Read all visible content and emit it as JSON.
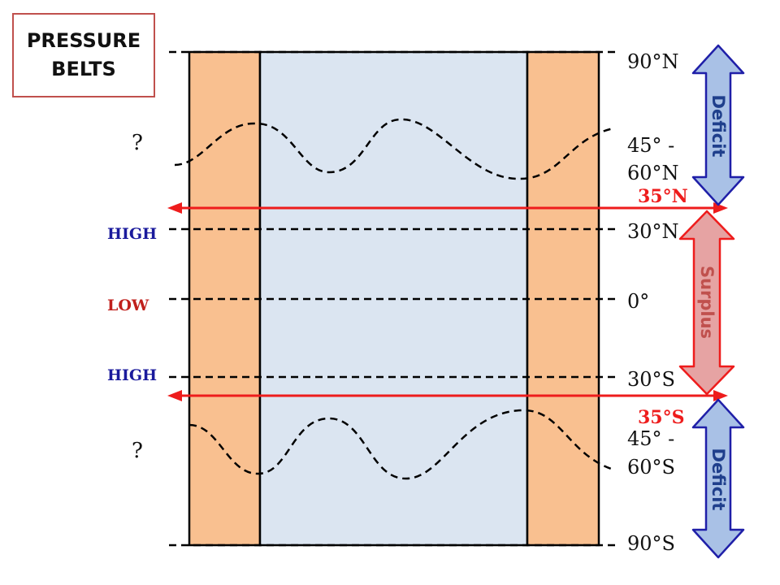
{
  "title": {
    "line1": "PRESSURE",
    "line2": "BELTS"
  },
  "latitudes": {
    "n90": "90°N",
    "n45_60_a": "45° -",
    "n45_60_b": "60°N",
    "n30": "30°N",
    "eq": "0°",
    "s30": "30°S",
    "s45_60_a": "45° -",
    "s45_60_b": "60°S",
    "s90": "90°S"
  },
  "belts": {
    "north_unknown": "?",
    "north_high": "HIGH",
    "equator_low": "LOW",
    "south_high": "HIGH",
    "south_unknown": "?"
  },
  "boundaries": {
    "north": "35°N",
    "south": "35°S"
  },
  "zones": {
    "north": "Deficit",
    "middle": "Surplus",
    "south": "Deficit"
  },
  "colors": {
    "land": "#f9c090",
    "ocean": "#dbe5f1",
    "high_label": "#1a1a9c",
    "low_label": "#c0201c",
    "boundary_arrow": "#ee1c1c",
    "deficit_fill": "#a9c1e6",
    "deficit_stroke": "#1f1fa8",
    "deficit_text": "#1f3f8c",
    "surplus_fill": "#e6a3a3",
    "surplus_stroke": "#ee1c1c",
    "surplus_text": "#c0504d"
  },
  "icons": {
    "boundary_arrows": "double-headed-arrow",
    "zone_arrows": "vertical-double-headed-arrow"
  }
}
